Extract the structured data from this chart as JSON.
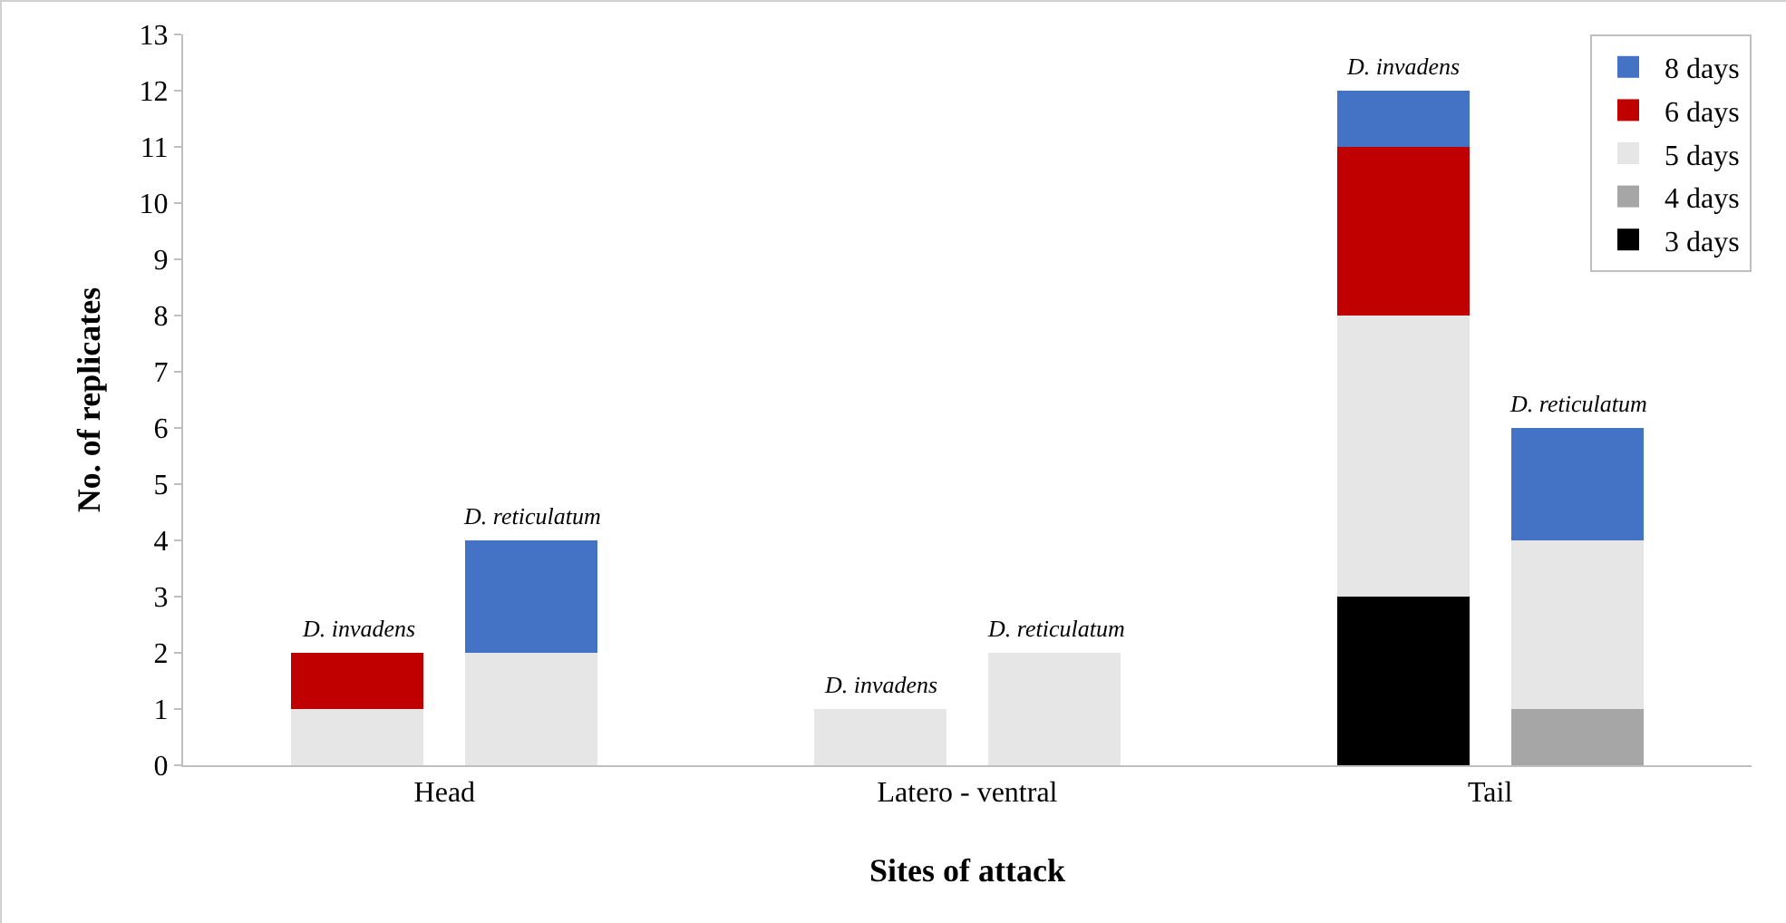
{
  "chart_data": {
    "type": "bar",
    "stacked": true,
    "xlabel": "Sites of attack",
    "ylabel": "No. of replicates",
    "categories": [
      null,
      null,
      null,
      null,
      null,
      null
    ],
    "annotations": [
      "Head",
      "Latero - ventral",
      "Tail",
      {
        "text": "D. invadens",
        "y": 2
      },
      {
        "text": "D. reticulatum",
        "y": 4
      },
      {
        "text": "D. invadens",
        "y": 1
      },
      {
        "text": "D. reticulatum",
        "y": 2
      },
      {
        "text": "D. invadens",
        "y": 12
      },
      {
        "text": "D. reticulatum",
        "y": 6
      }
    ],
    "series": [
      {
        "name": "3 days",
        "color": "#000000",
        "values": [
          null,
          null,
          null,
          null,
          3,
          null
        ]
      },
      {
        "name": "4 days",
        "color": "#a6a6a6",
        "values": [
          null,
          null,
          null,
          null,
          null,
          1
        ]
      },
      {
        "name": "5 days",
        "color": "#e7e6e6",
        "values": [
          1,
          2,
          1,
          2,
          5,
          3
        ]
      },
      {
        "name": "6 days",
        "color": "#c00000",
        "values": [
          1,
          null,
          null,
          null,
          3,
          null
        ]
      },
      {
        "name": "8 days",
        "color": "#4472c4",
        "values": [
          null,
          2,
          null,
          null,
          1,
          2
        ]
      }
    ],
    "ylim": [
      0,
      13
    ],
    "yticks": [
      0,
      1,
      2,
      3,
      4,
      5,
      6,
      7,
      8,
      9,
      10,
      11,
      12,
      13
    ],
    "grid": false,
    "legend": "top right"
  }
}
